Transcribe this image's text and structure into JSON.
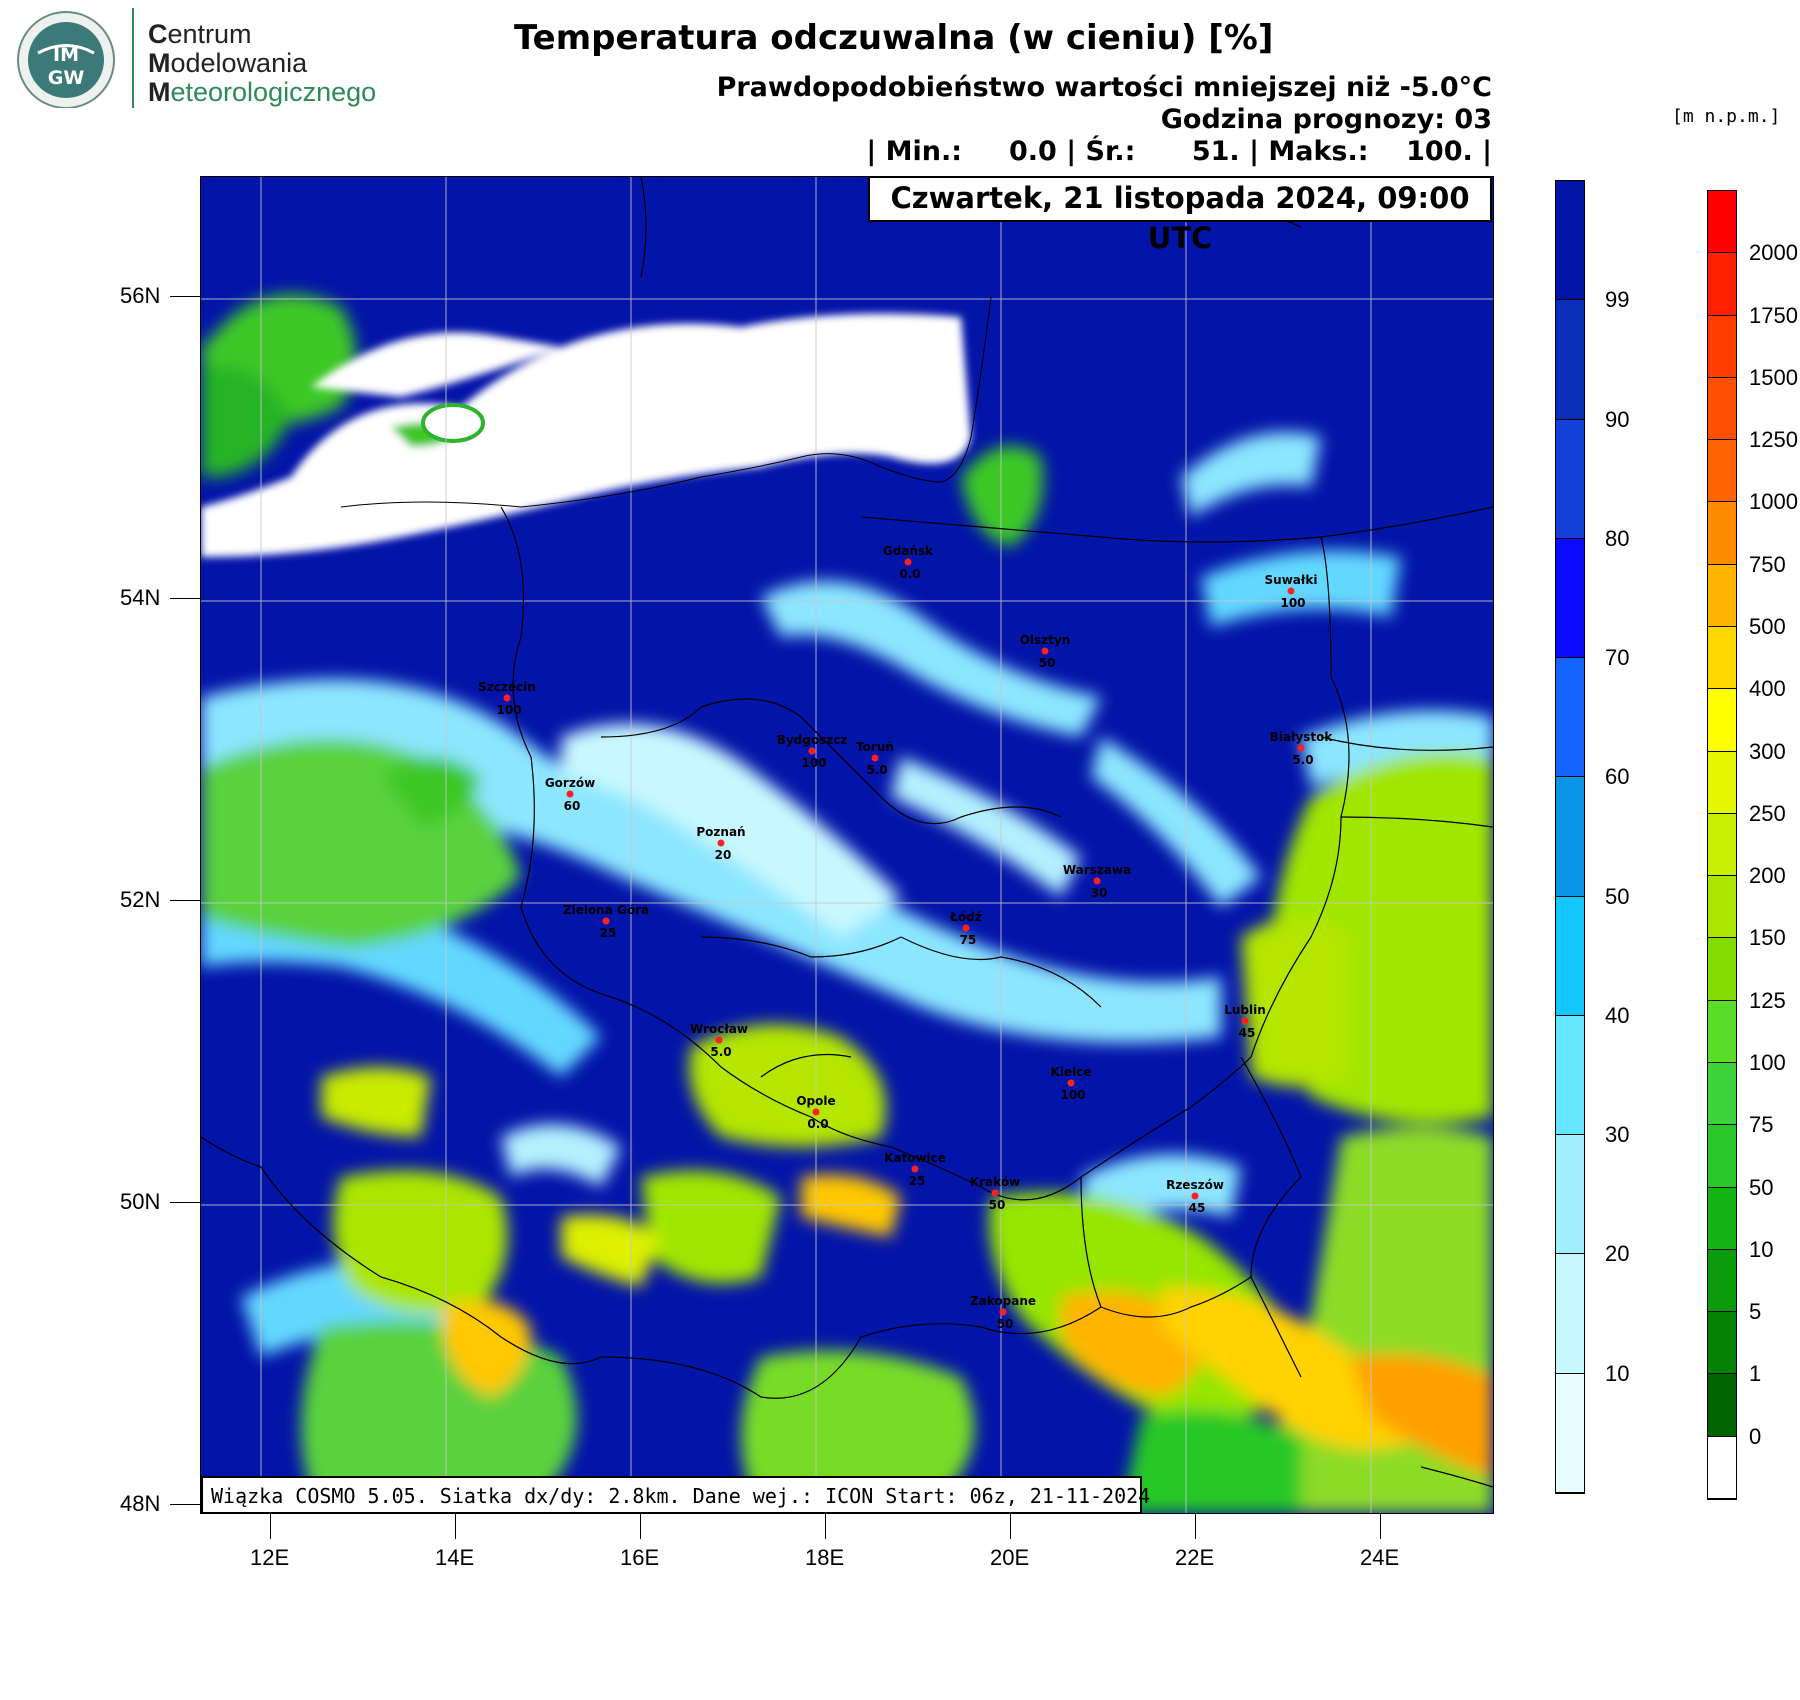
{
  "logo": {
    "badge_text": "IMGW",
    "line1_first": "C",
    "line1_rest": "entrum",
    "line2_first": "M",
    "line2_rest": "odelowania",
    "line3_first": "M",
    "line3_rest": "eteorologicznego"
  },
  "header": {
    "title": "Temperatura odczuwalna (w cieniu) [%]",
    "subtitle": "Prawdopodobieństwo wartości mniejszej niż -5.0°C",
    "forecast_hour": "Godzina prognozy: 03",
    "stats": "| Min.:     0.0 | Śr.:      51. | Maks.:    100. |",
    "date": "Czwartek, 21 listopada 2024, 09:00 UTC"
  },
  "footer": "Wiązka COSMO 5.05. Siatka dx/dy: 2.8km. Dane wej.: ICON Start: 06z, 21-11-2024",
  "elevation_units": "[m n.p.m.]",
  "axes": {
    "lat_labels": [
      "56N",
      "54N",
      "52N",
      "50N",
      "48N"
    ],
    "lon_labels": [
      "12E",
      "14E",
      "16E",
      "18E",
      "20E",
      "22E",
      "24E"
    ]
  },
  "probability_scale": {
    "labels": [
      "99",
      "90",
      "80",
      "70",
      "60",
      "50",
      "40",
      "30",
      "20",
      "10"
    ],
    "colors": [
      "#0314a8",
      "#0a2dba",
      "#1240d8",
      "#0a0aff",
      "#1464ff",
      "#0a96e6",
      "#14c8ff",
      "#64e6ff",
      "#a0f0ff",
      "#c8f8ff",
      "#e6fcff"
    ]
  },
  "elevation_scale": {
    "labels": [
      "2000",
      "1750",
      "1500",
      "1250",
      "1000",
      "750",
      "500",
      "400",
      "300",
      "250",
      "200",
      "150",
      "125",
      "100",
      "75",
      "50",
      "10",
      "5",
      "1",
      "0"
    ],
    "colors": [
      "#ff0000",
      "#ff2000",
      "#ff3c00",
      "#ff5000",
      "#ff6400",
      "#ff8c00",
      "#ffb400",
      "#ffd700",
      "#ffff00",
      "#e6f500",
      "#c8f000",
      "#aae600",
      "#82dc00",
      "#5adc28",
      "#3cd23c",
      "#28c828",
      "#14b414",
      "#0a9a0a",
      "#048204",
      "#006400",
      "#ffffff"
    ]
  },
  "cities": [
    {
      "name": "Gdańsk",
      "value": "0.0"
    },
    {
      "name": "Suwałki",
      "value": "100"
    },
    {
      "name": "Olsztyn",
      "value": "50"
    },
    {
      "name": "Szczecin",
      "value": "100"
    },
    {
      "name": "Bydgoszcz",
      "value": "100"
    },
    {
      "name": "Toruń",
      "value": "5.0"
    },
    {
      "name": "Białystok",
      "value": "5.0"
    },
    {
      "name": "Gorzów",
      "value": "60"
    },
    {
      "name": "Poznań",
      "value": "20"
    },
    {
      "name": "Warszawa",
      "value": "30"
    },
    {
      "name": "Zielona Góra",
      "value": "25"
    },
    {
      "name": "Łódź",
      "value": "75"
    },
    {
      "name": "Lublin",
      "value": "45"
    },
    {
      "name": "Wrocław",
      "value": "5.0"
    },
    {
      "name": "Kielce",
      "value": "100"
    },
    {
      "name": "Opole",
      "value": "0.0"
    },
    {
      "name": "Katowice",
      "value": "25"
    },
    {
      "name": "Kraków",
      "value": "50"
    },
    {
      "name": "Rzeszów",
      "value": "45"
    },
    {
      "name": "Zakopane",
      "value": "50"
    }
  ]
}
